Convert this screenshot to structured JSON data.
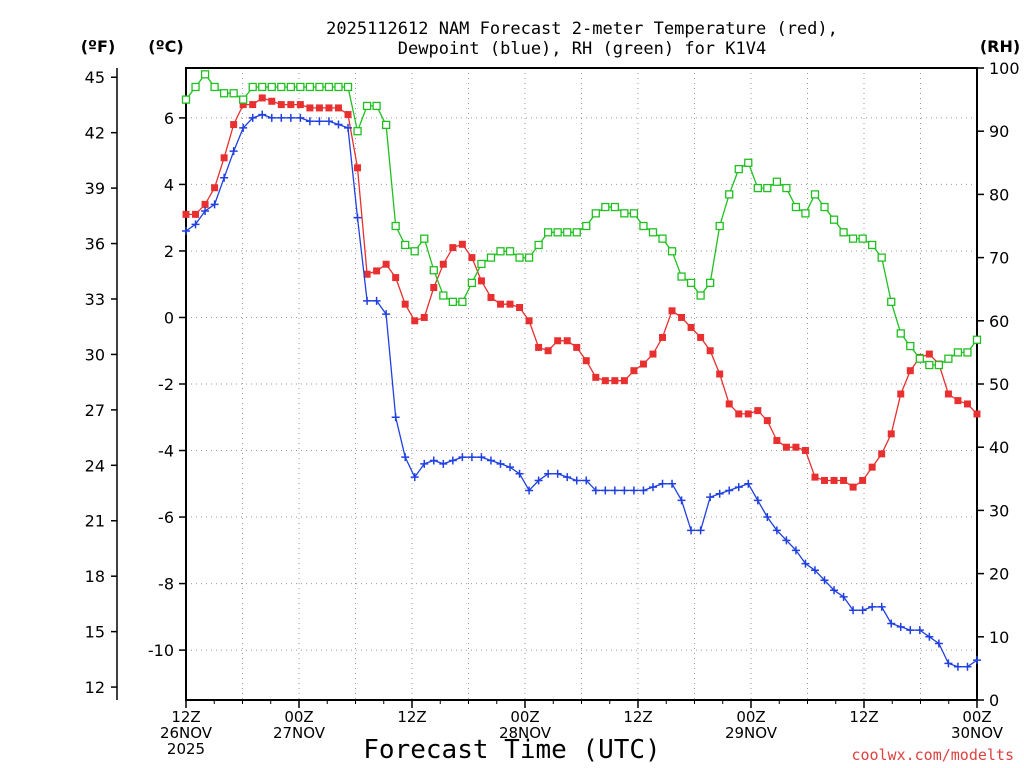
{
  "chart_data": {
    "type": "line",
    "title_lines": [
      "2025112612 NAM Forecast 2-meter Temperature (red),",
      "Dewpoint (blue), RH (green) for K1V4"
    ],
    "xlabel": "Forecast Time (UTC)",
    "credit": "coolwx.com/modelts",
    "units": {
      "left_f": "(ºF)",
      "left_c": "(ºC)",
      "right": "(RH)"
    },
    "axes": {
      "x_hours": [
        0,
        84
      ],
      "celsius": [
        -11.5,
        7.5
      ],
      "rh": [
        0,
        100
      ],
      "celsius_ticks": [
        "6",
        "4",
        "2",
        "0",
        "-2",
        "-4",
        "-6",
        "-8",
        "-10"
      ],
      "celsius_values": [
        6,
        4,
        2,
        0,
        -2,
        -4,
        -6,
        -8,
        -10
      ],
      "fahrenheit_ticks": [
        "45",
        "42",
        "39",
        "36",
        "33",
        "30",
        "27",
        "24",
        "21",
        "18",
        "15",
        "12"
      ],
      "fahrenheit_values": [
        45,
        42,
        39,
        36,
        33,
        30,
        27,
        24,
        21,
        18,
        15,
        12
      ],
      "rh_ticks": [
        "100",
        "90",
        "80",
        "70",
        "60",
        "50",
        "40",
        "30",
        "20",
        "10",
        "0"
      ],
      "rh_values": [
        100,
        90,
        80,
        70,
        60,
        50,
        40,
        30,
        20,
        10,
        0
      ]
    },
    "x_ticks": [
      {
        "hour": 0,
        "lines": [
          "12Z",
          "26NOV",
          "2025"
        ]
      },
      {
        "hour": 12,
        "lines": [
          "00Z",
          "27NOV"
        ]
      },
      {
        "hour": 24,
        "lines": [
          "12Z"
        ]
      },
      {
        "hour": 36,
        "lines": [
          "00Z",
          "28NOV"
        ]
      },
      {
        "hour": 48,
        "lines": [
          "12Z"
        ]
      },
      {
        "hour": 60,
        "lines": [
          "00Z",
          "29NOV"
        ]
      },
      {
        "hour": 72,
        "lines": [
          "12Z"
        ]
      },
      {
        "hour": 84,
        "lines": [
          "00Z",
          "30NOV"
        ]
      }
    ],
    "series": [
      {
        "name": "Temperature",
        "color": "#e83030",
        "marker": "filled-square",
        "axis": "celsius",
        "values": [
          3.1,
          3.1,
          3.4,
          3.9,
          4.8,
          5.8,
          6.4,
          6.4,
          6.6,
          6.5,
          6.4,
          6.4,
          6.4,
          6.3,
          6.3,
          6.3,
          6.3,
          6.1,
          4.5,
          1.3,
          1.4,
          1.6,
          1.2,
          0.4,
          -0.1,
          0,
          0.9,
          1.6,
          2.1,
          2.2,
          1.8,
          1.1,
          0.6,
          0.4,
          0.4,
          0.3,
          -0.1,
          -0.9,
          -1.0,
          -0.7,
          -0.7,
          -0.9,
          -1.3,
          -1.8,
          -1.9,
          -1.9,
          -1.9,
          -1.6,
          -1.4,
          -1.1,
          -0.6,
          0.2,
          0.0,
          -0.3,
          -0.6,
          -1.0,
          -1.7,
          -2.6,
          -2.9,
          -2.9,
          -2.8,
          -3.1,
          -3.7,
          -3.9,
          -3.9,
          -4.0,
          -4.8,
          -4.9,
          -4.9,
          -4.9,
          -5.1,
          -4.9,
          -4.5,
          -4.1,
          -3.5,
          -2.3,
          -1.6,
          -1.2,
          -1.1,
          -1.4,
          -2.3,
          -2.5,
          -2.6,
          -2.9
        ]
      },
      {
        "name": "Dewpoint",
        "color": "#2040e0",
        "marker": "plus",
        "axis": "celsius",
        "values": [
          2.6,
          2.8,
          3.2,
          3.4,
          4.2,
          5.0,
          5.7,
          6.0,
          6.1,
          6.0,
          6.0,
          6.0,
          6.0,
          5.9,
          5.9,
          5.9,
          5.8,
          5.7,
          3.0,
          0.5,
          0.5,
          0.1,
          -3.0,
          -4.2,
          -4.8,
          -4.4,
          -4.3,
          -4.4,
          -4.3,
          -4.2,
          -4.2,
          -4.2,
          -4.3,
          -4.4,
          -4.5,
          -4.7,
          -5.2,
          -4.9,
          -4.7,
          -4.7,
          -4.8,
          -4.9,
          -4.9,
          -5.2,
          -5.2,
          -5.2,
          -5.2,
          -5.2,
          -5.2,
          -5.1,
          -5.0,
          -5.0,
          -5.5,
          -6.4,
          -6.4,
          -5.4,
          -5.3,
          -5.2,
          -5.1,
          -5.0,
          -5.5,
          -6.0,
          -6.4,
          -6.7,
          -7.0,
          -7.4,
          -7.6,
          -7.9,
          -8.2,
          -8.4,
          -8.8,
          -8.8,
          -8.7,
          -8.7,
          -9.2,
          -9.3,
          -9.4,
          -9.4,
          -9.6,
          -9.8,
          -10.4,
          -10.5,
          -10.5,
          -10.3
        ]
      },
      {
        "name": "RH",
        "color": "#20c020",
        "marker": "open-square",
        "axis": "rh",
        "values": [
          95,
          97,
          99,
          97,
          96,
          96,
          95,
          97,
          97,
          97,
          97,
          97,
          97,
          97,
          97,
          97,
          97,
          97,
          90,
          94,
          94,
          91,
          75,
          72,
          71,
          73,
          68,
          64,
          63,
          63,
          66,
          69,
          70,
          71,
          71,
          70,
          70,
          72,
          74,
          74,
          74,
          74,
          75,
          77,
          78,
          78,
          77,
          77,
          75,
          74,
          73,
          71,
          67,
          66,
          64,
          66,
          75,
          80,
          84,
          85,
          81,
          81,
          82,
          81,
          78,
          77,
          80,
          78,
          76,
          74,
          73,
          73,
          72,
          70,
          63,
          58,
          56,
          54,
          53,
          53,
          54,
          55,
          55,
          57
        ]
      }
    ]
  }
}
